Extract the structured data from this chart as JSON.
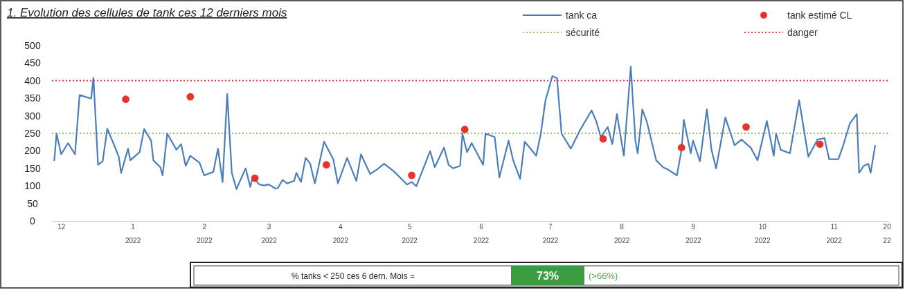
{
  "chart_data": {
    "type": "line",
    "title": "1. Evolution des cellules de tank ces 12 derniers mois",
    "xlim": [
      "2021-11-27",
      "2022-11-25"
    ],
    "ylim": [
      0,
      500
    ],
    "yticks": [
      0,
      50,
      100,
      150,
      200,
      250,
      300,
      350,
      400,
      450,
      500
    ],
    "xticks": [
      {
        "value": "2021-12-01",
        "label": "12"
      },
      {
        "value": "2022-01-01",
        "label": "1\n2022"
      },
      {
        "value": "2022-02-01",
        "label": "2\n2022"
      },
      {
        "value": "2022-03-01",
        "label": "3\n2022"
      },
      {
        "value": "2022-04-01",
        "label": "4\n2022"
      },
      {
        "value": "2022-05-01",
        "label": "5\n2022"
      },
      {
        "value": "2022-06-01",
        "label": "6\n2022"
      },
      {
        "value": "2022-07-01",
        "label": "7\n2022"
      },
      {
        "value": "2022-08-01",
        "label": "8\n2022"
      },
      {
        "value": "2022-09-01",
        "label": "9\n2022"
      },
      {
        "value": "2022-10-01",
        "label": "10\n2022"
      },
      {
        "value": "2022-11-01",
        "label": "11\n2022"
      },
      {
        "value": "2022-11-24",
        "label": "20\n22"
      }
    ],
    "grid": false,
    "legend": "top right",
    "series": [
      {
        "name": "tank ca",
        "color": "#4a7ebb",
        "marker": "none",
        "line_style": "solid",
        "x": [
          "2021-11-28",
          "2021-11-29",
          "2021-12-01",
          "2021-12-04",
          "2021-12-07",
          "2021-12-09",
          "2021-12-14",
          "2021-12-15",
          "2021-12-17",
          "2021-12-19",
          "2021-12-21",
          "2021-12-24",
          "2021-12-26",
          "2021-12-27",
          "2021-12-30",
          "2021-12-31",
          "2022-01-04",
          "2022-01-06",
          "2022-01-09",
          "2022-01-10",
          "2022-01-13",
          "2022-01-14",
          "2022-01-16",
          "2022-01-20",
          "2022-01-22",
          "2022-01-24",
          "2022-01-26",
          "2022-01-30",
          "2022-02-01",
          "2022-02-05",
          "2022-02-07",
          "2022-02-09",
          "2022-02-11",
          "2022-02-13",
          "2022-02-15",
          "2022-02-19",
          "2022-02-21",
          "2022-02-22",
          "2022-02-25",
          "2022-02-27",
          "2022-03-01",
          "2022-03-04",
          "2022-03-05",
          "2022-03-07",
          "2022-03-09",
          "2022-03-12",
          "2022-03-13",
          "2022-03-15",
          "2022-03-17",
          "2022-03-19",
          "2022-03-21",
          "2022-03-25",
          "2022-03-29",
          "2022-03-31",
          "2022-04-04",
          "2022-04-08",
          "2022-04-10",
          "2022-04-14",
          "2022-04-17",
          "2022-04-20",
          "2022-04-24",
          "2022-04-30",
          "2022-05-02",
          "2022-05-04",
          "2022-05-10",
          "2022-05-12",
          "2022-05-16",
          "2022-05-18",
          "2022-05-20",
          "2022-05-23",
          "2022-05-24",
          "2022-05-26",
          "2022-05-28",
          "2022-06-02",
          "2022-06-03",
          "2022-06-07",
          "2022-06-09",
          "2022-06-13",
          "2022-06-15",
          "2022-06-18",
          "2022-06-20",
          "2022-06-25",
          "2022-06-27",
          "2022-06-29",
          "2022-07-02",
          "2022-07-04",
          "2022-07-06",
          "2022-07-10",
          "2022-07-14",
          "2022-07-19",
          "2022-07-21",
          "2022-07-23",
          "2022-07-26",
          "2022-07-28",
          "2022-07-30",
          "2022-08-02",
          "2022-08-05",
          "2022-08-07",
          "2022-08-08",
          "2022-08-10",
          "2022-08-12",
          "2022-08-16",
          "2022-08-19",
          "2022-08-21",
          "2022-08-25",
          "2022-08-27",
          "2022-08-28",
          "2022-08-31",
          "2022-09-01",
          "2022-09-04",
          "2022-09-07",
          "2022-09-09",
          "2022-09-11",
          "2022-09-15",
          "2022-09-19",
          "2022-09-22",
          "2022-09-26",
          "2022-09-29",
          "2022-10-03",
          "2022-10-06",
          "2022-10-07",
          "2022-10-09",
          "2022-10-13",
          "2022-10-17",
          "2022-10-21",
          "2022-10-25",
          "2022-10-28",
          "2022-10-30",
          "2022-11-03",
          "2022-11-05",
          "2022-11-08",
          "2022-11-11",
          "2022-11-12",
          "2022-11-14",
          "2022-11-16",
          "2022-11-17",
          "2022-11-19"
        ],
        "values": [
          171,
          249,
          190,
          222,
          190,
          359,
          349,
          408,
          160,
          170,
          263,
          216,
          183,
          137,
          206,
          173,
          196,
          262,
          229,
          173,
          153,
          130,
          249,
          203,
          219,
          157,
          186,
          166,
          130,
          140,
          206,
          111,
          362,
          137,
          91,
          150,
          97,
          124,
          104,
          101,
          104,
          92,
          94,
          117,
          107,
          114,
          137,
          111,
          180,
          163,
          107,
          226,
          176,
          107,
          180,
          114,
          190,
          134,
          147,
          163,
          143,
          104,
          111,
          99,
          199,
          153,
          209,
          160,
          150,
          157,
          249,
          196,
          222,
          160,
          249,
          239,
          124,
          229,
          173,
          120,
          226,
          186,
          249,
          344,
          413,
          407,
          249,
          206,
          259,
          315,
          285,
          239,
          268,
          219,
          305,
          186,
          440,
          229,
          193,
          318,
          282,
          173,
          153,
          147,
          130,
          203,
          288,
          193,
          229,
          170,
          318,
          203,
          150,
          295,
          216,
          232,
          209,
          173,
          285,
          186,
          249,
          203,
          193,
          344,
          183,
          232,
          236,
          176,
          176,
          213,
          278,
          305,
          137,
          157,
          163,
          137,
          216
        ]
      },
      {
        "name": "tank estimé CL",
        "type": "scatter",
        "color": "#e8332a",
        "marker": "circle",
        "x": [
          "2021-12-29",
          "2022-01-26",
          "2022-02-23",
          "2022-03-26",
          "2022-05-02",
          "2022-05-25",
          "2022-07-24",
          "2022-08-27",
          "2022-09-24",
          "2022-10-26"
        ],
        "values": [
          347,
          354,
          122,
          160,
          130,
          261,
          234,
          209,
          268,
          219
        ]
      }
    ],
    "ref_lines": [
      {
        "axis": "y",
        "value": 250,
        "label": "sécurité",
        "color": "#9bbb59",
        "line_style": "dotted"
      },
      {
        "axis": "y",
        "value": 400,
        "label": "danger",
        "color": "#e8333a",
        "line_style": "dotted"
      }
    ],
    "annotations": [
      "% tanks < 250 ces 6 dern. Mois =",
      "73%",
      "(>66%)"
    ]
  }
}
